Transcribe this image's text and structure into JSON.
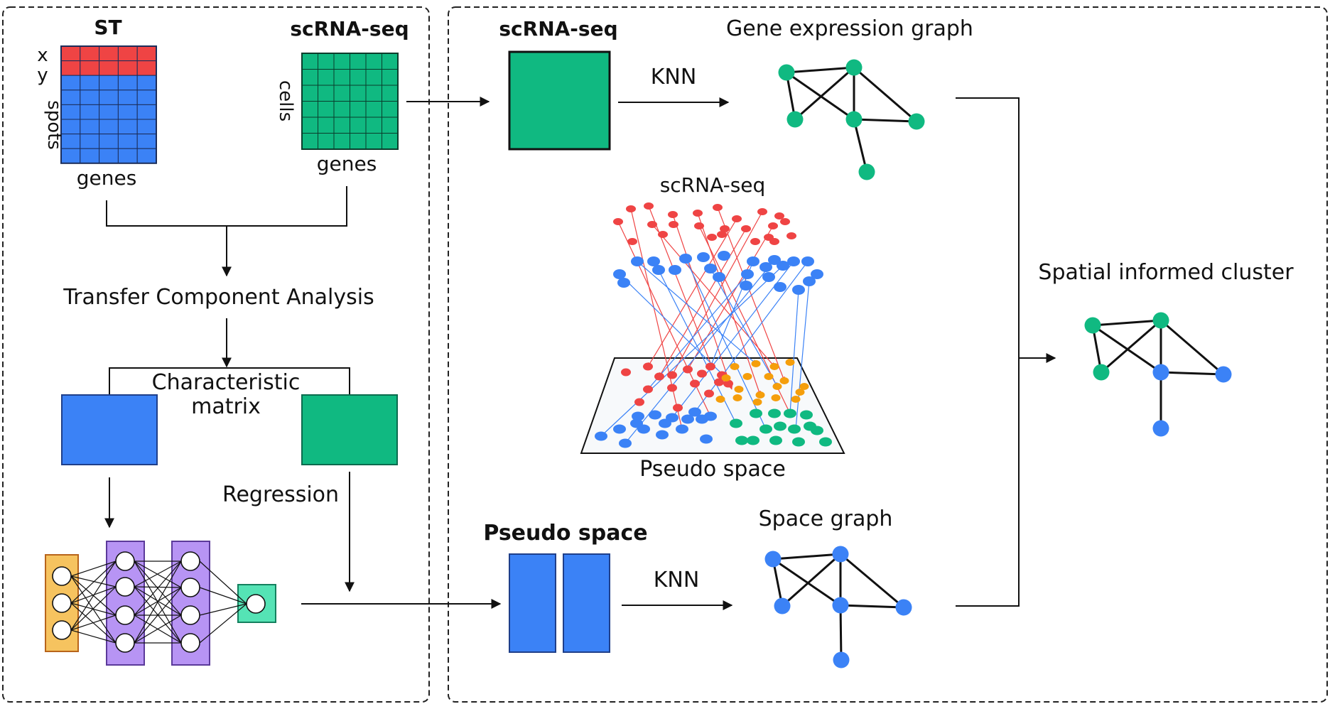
{
  "colors": {
    "red": "#ef4444",
    "blue": "#3b82f6",
    "green": "#10b981",
    "orange": "#f59e0b",
    "purple": "#b794f4",
    "nn_input": "#f6c35f",
    "nn_output": "#55e3b5",
    "line": "#111111"
  },
  "left_panel": {
    "st_title": "ST",
    "st_row_labels": [
      "x",
      "y"
    ],
    "st_rows_label": "spots",
    "st_cols_label": "genes",
    "sc_title": "scRNA-seq",
    "sc_rows_label": "cells",
    "sc_cols_label": "genes",
    "tca_label": "Transfer Component Analysis",
    "char_line1": "Characteristic",
    "char_line2": "matrix",
    "regression_label": "Regression"
  },
  "right_panel": {
    "sc_title": "scRNA-seq",
    "knn_top": "KNN",
    "gene_graph_title": "Gene expression graph",
    "mapping_title": "scRNA-seq",
    "pseudo_space_caption": "Pseudo space",
    "pseudo_space_title": "Pseudo space",
    "knn_bottom": "KNN",
    "space_graph_title": "Space graph",
    "cluster_title": "Spatial informed cluster"
  }
}
